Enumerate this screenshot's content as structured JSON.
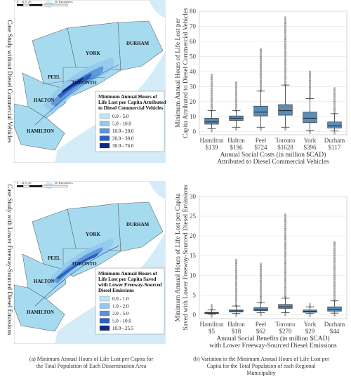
{
  "row_labels": [
    "Case Study without Diesel Commercial Vehicles",
    "Case Study with Lower Freeway-Sourced Diesel Emissions"
  ],
  "maps": [
    {
      "scale_labels": [
        "0",
        "12.5",
        "25",
        "50 Kilometers"
      ],
      "regions": [
        "YORK",
        "DURHAM",
        "PEEL",
        "TORONTO",
        "HALTON",
        "HAMILTON"
      ],
      "legend_title": [
        "Minimum Annual Hours of",
        "Life Lost per Capita Attributed",
        "to Diesel Commercial Vehicles"
      ],
      "legend_items": [
        {
          "label": "0.0 - 5.0",
          "color": "#bfe6f2"
        },
        {
          "label": "5.0 - 10.0",
          "color": "#93c9ec"
        },
        {
          "label": "10.0 - 20.0",
          "color": "#5a93d8"
        },
        {
          "label": "20.0 - 30.0",
          "color": "#2b5fc0"
        },
        {
          "label": "30.0 - 76.0",
          "color": "#0e2a86"
        }
      ]
    },
    {
      "scale_labels": [
        "0",
        "12.5",
        "25",
        "50 Kilometers"
      ],
      "regions": [
        "YORK",
        "DURHAM",
        "PEEL",
        "TORONTO",
        "HALTON",
        "HAMILTON"
      ],
      "legend_title": [
        "Minimum Annual Hours of",
        "Life Lost per Capita Saved",
        "with Lower Freeway-Sourced",
        "Diesel Emissions"
      ],
      "legend_items": [
        {
          "label": "0.0 - 1.0",
          "color": "#bfe6f2"
        },
        {
          "label": "1.0 - 2.0",
          "color": "#93c9ec"
        },
        {
          "label": "2.0 - 5.0",
          "color": "#5a93d8"
        },
        {
          "label": "5.0 - 10.0",
          "color": "#2b5fc0"
        },
        {
          "label": "10.0 - 25.5",
          "color": "#0e2a86"
        }
      ]
    }
  ],
  "chart_data": [
    {
      "type": "box",
      "categories": [
        "Hamilton",
        "Halton",
        "Peel",
        "Toronto",
        "York",
        "Durham"
      ],
      "category_values": [
        "$139",
        "$196",
        "$724",
        "$1628",
        "$396",
        "$117"
      ],
      "ylabel": [
        "Minimum Annual Hours of Life Lost per",
        "Capita Attributed to Diesel Commercial Vehicles"
      ],
      "xlabel": [
        "Annual Social Costs (in million $CAD)",
        "Attributed to Diesel Commercial Vehicles"
      ],
      "ylim": [
        -2,
        80
      ],
      "yticks": [
        0,
        10,
        20,
        30,
        40,
        50,
        60,
        70,
        80
      ],
      "boxes": [
        {
          "whislo": 2,
          "q1": 5,
          "med": 6.5,
          "q3": 9,
          "whishi": 14,
          "outhi": 38
        },
        {
          "whislo": 3,
          "q1": 7.5,
          "med": 9,
          "q3": 10.5,
          "whishi": 14,
          "outhi": 33
        },
        {
          "whislo": 3,
          "q1": 10.5,
          "med": 13,
          "q3": 17,
          "whishi": 27,
          "outhi": 55
        },
        {
          "whislo": 3,
          "q1": 11,
          "med": 14,
          "q3": 18,
          "whishi": 31,
          "outhi": 76
        },
        {
          "whislo": 1,
          "q1": 6,
          "med": 9,
          "q3": 13,
          "whishi": 22,
          "outhi": 40
        },
        {
          "whislo": 0.5,
          "q1": 2.5,
          "med": 4,
          "q3": 6.5,
          "whishi": 12,
          "outhi": 29
        }
      ],
      "box_color": "#5b8db8",
      "grid": true
    },
    {
      "type": "box",
      "categories": [
        "Hamilton",
        "Halton",
        "Peel",
        "Toronto",
        "York",
        "Durham"
      ],
      "category_values": [
        "$5",
        "$18",
        "$62",
        "$270",
        "$29",
        "$44"
      ],
      "ylabel": [
        "Minimum Annual Hours of Life Lost per Capita",
        "Saved with Lower Freeway-Sourced Diesel Emissions"
      ],
      "xlabel": [
        "Annual Social Benefits (in million $CAD)",
        "with Lower Freeway-Sourced Diesel Emissions"
      ],
      "ylim": [
        -1,
        30
      ],
      "yticks": [
        0,
        5,
        10,
        15,
        20,
        25,
        30
      ],
      "boxes": [
        {
          "whislo": 0.1,
          "q1": 0.3,
          "med": 0.45,
          "q3": 0.6,
          "whishi": 1.2,
          "outhi": 2.5
        },
        {
          "whislo": 0.3,
          "q1": 0.7,
          "med": 0.95,
          "q3": 1.2,
          "whishi": 2.2,
          "outhi": 14
        },
        {
          "whislo": 0.5,
          "q1": 1.0,
          "med": 1.3,
          "q3": 1.8,
          "whishi": 3.0,
          "outhi": 13
        },
        {
          "whislo": 0.5,
          "q1": 1.6,
          "med": 2.0,
          "q3": 2.6,
          "whishi": 4.2,
          "outhi": 25.5
        },
        {
          "whislo": 0.3,
          "q1": 0.6,
          "med": 0.85,
          "q3": 1.2,
          "whishi": 2.0,
          "outhi": 2.8
        },
        {
          "whislo": 0.4,
          "q1": 0.9,
          "med": 1.3,
          "q3": 2.0,
          "whishi": 3.5,
          "outhi": 18.5
        }
      ],
      "box_color": "#5b8db8",
      "grid": true
    }
  ],
  "captions": [
    [
      "(a)  Minimum Annual Hours of Life Lost per Capita for",
      "the Total Population of Each Dissemination Area"
    ],
    [
      "(b)  Variation in the Minimum Annual Hours of Life Lost per",
      "Capita for the Total Population of each Regional",
      "Municipality"
    ]
  ]
}
